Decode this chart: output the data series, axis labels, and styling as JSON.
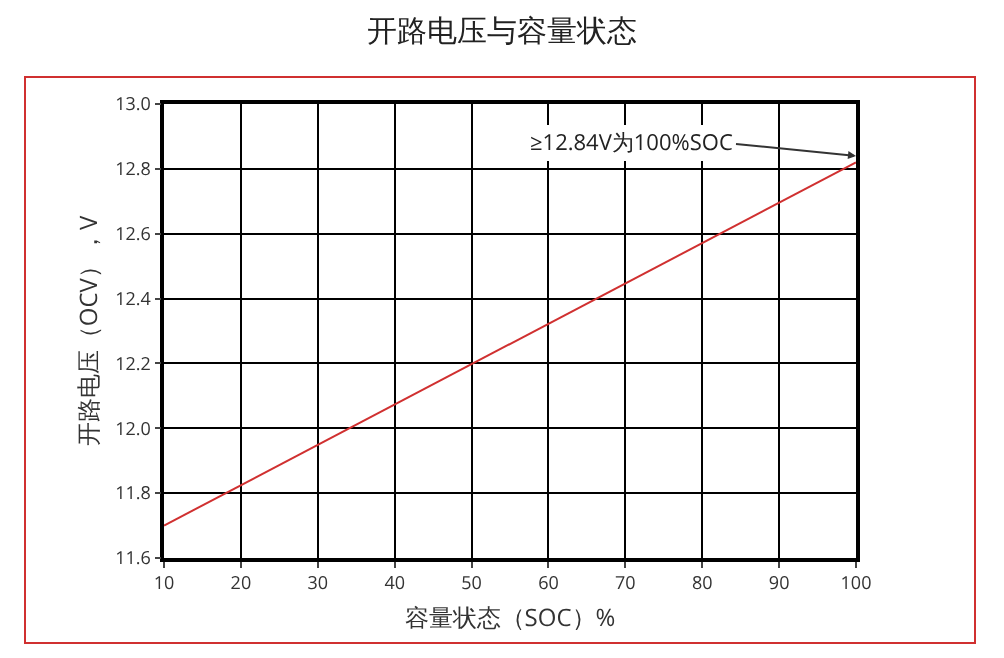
{
  "chart_data": {
    "type": "line",
    "title": "开路电压与容量状态",
    "xlabel": "容量状态（SOC）%",
    "ylabel": "开路电压（OCV），V",
    "x": [
      10,
      100
    ],
    "series": [
      {
        "color": "#d03030",
        "values": [
          11.7,
          12.82
        ]
      }
    ],
    "xlim": [
      10,
      100
    ],
    "xticks": [
      10,
      20,
      30,
      40,
      50,
      60,
      70,
      80,
      90,
      100
    ],
    "ylim": [
      11.6,
      13.0
    ],
    "yticks": [
      {
        "value": 11.6,
        "label": "11.6"
      },
      {
        "value": 11.8,
        "label": "11.8"
      },
      {
        "value": 12.0,
        "label": "12.0"
      },
      {
        "value": 12.2,
        "label": "12.2"
      },
      {
        "value": 12.4,
        "label": "12.4"
      },
      {
        "value": 12.6,
        "label": "12.6"
      },
      {
        "value": 12.8,
        "label": "12.8"
      },
      {
        "value": 13.0,
        "label": "13.0"
      }
    ],
    "grid": true,
    "marker": "none",
    "line_style": "solid",
    "annotations": [
      {
        "text": "≥12.84V为100%SOC",
        "x": 100,
        "y": 12.84
      }
    ]
  }
}
